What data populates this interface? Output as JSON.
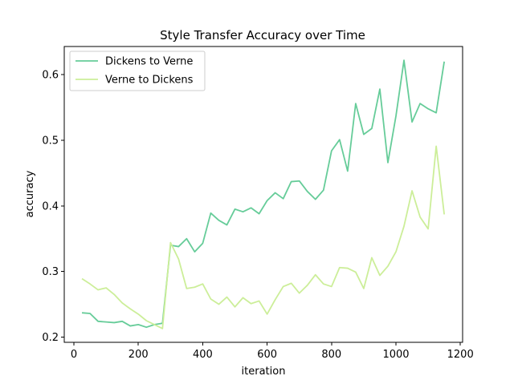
{
  "chart_data": {
    "type": "line",
    "title": "Style Transfer Accuracy over Time",
    "xlabel": "iteration",
    "ylabel": "accuracy",
    "xlim": [
      -30,
      1207
    ],
    "ylim": [
      0.192,
      0.643
    ],
    "xticks": [
      0,
      200,
      400,
      600,
      800,
      1000,
      1200
    ],
    "yticks": [
      0.2,
      0.3,
      0.4,
      0.5,
      0.6
    ],
    "grid": false,
    "legend_position": "top-left",
    "series": [
      {
        "name": "Dickens to Verne",
        "color": "#66cc99",
        "x": [
          25,
          50,
          75,
          100,
          125,
          150,
          175,
          200,
          225,
          250,
          275,
          300,
          325,
          350,
          375,
          400,
          425,
          450,
          475,
          500,
          525,
          550,
          575,
          600,
          625,
          650,
          675,
          700,
          725,
          750,
          775,
          800,
          825,
          850,
          875,
          900,
          925,
          950,
          975,
          1000,
          1025,
          1050,
          1075,
          1100,
          1125,
          1150
        ],
        "y": [
          0.237,
          0.236,
          0.224,
          0.223,
          0.222,
          0.224,
          0.217,
          0.219,
          0.215,
          0.219,
          0.221,
          0.34,
          0.338,
          0.35,
          0.33,
          0.343,
          0.389,
          0.378,
          0.371,
          0.395,
          0.391,
          0.397,
          0.388,
          0.408,
          0.42,
          0.411,
          0.437,
          0.438,
          0.422,
          0.41,
          0.424,
          0.484,
          0.501,
          0.453,
          0.556,
          0.509,
          0.518,
          0.578,
          0.466,
          0.537,
          0.622,
          0.528,
          0.556,
          0.548,
          0.542,
          0.62
        ]
      },
      {
        "name": "Verne to Dickens",
        "color": "#ccee99",
        "x": [
          25,
          50,
          75,
          100,
          125,
          150,
          175,
          200,
          225,
          250,
          275,
          300,
          325,
          350,
          375,
          400,
          425,
          450,
          475,
          500,
          525,
          550,
          575,
          600,
          625,
          650,
          675,
          700,
          725,
          750,
          775,
          800,
          825,
          850,
          875,
          900,
          925,
          950,
          975,
          1000,
          1025,
          1050,
          1075,
          1100,
          1125,
          1150
        ],
        "y": [
          0.289,
          0.281,
          0.272,
          0.275,
          0.265,
          0.252,
          0.243,
          0.235,
          0.225,
          0.219,
          0.213,
          0.344,
          0.319,
          0.274,
          0.276,
          0.281,
          0.258,
          0.25,
          0.261,
          0.246,
          0.26,
          0.251,
          0.255,
          0.235,
          0.257,
          0.277,
          0.282,
          0.267,
          0.279,
          0.295,
          0.281,
          0.277,
          0.306,
          0.305,
          0.299,
          0.274,
          0.321,
          0.294,
          0.308,
          0.33,
          0.369,
          0.423,
          0.383,
          0.365,
          0.491,
          0.387
        ]
      }
    ]
  }
}
